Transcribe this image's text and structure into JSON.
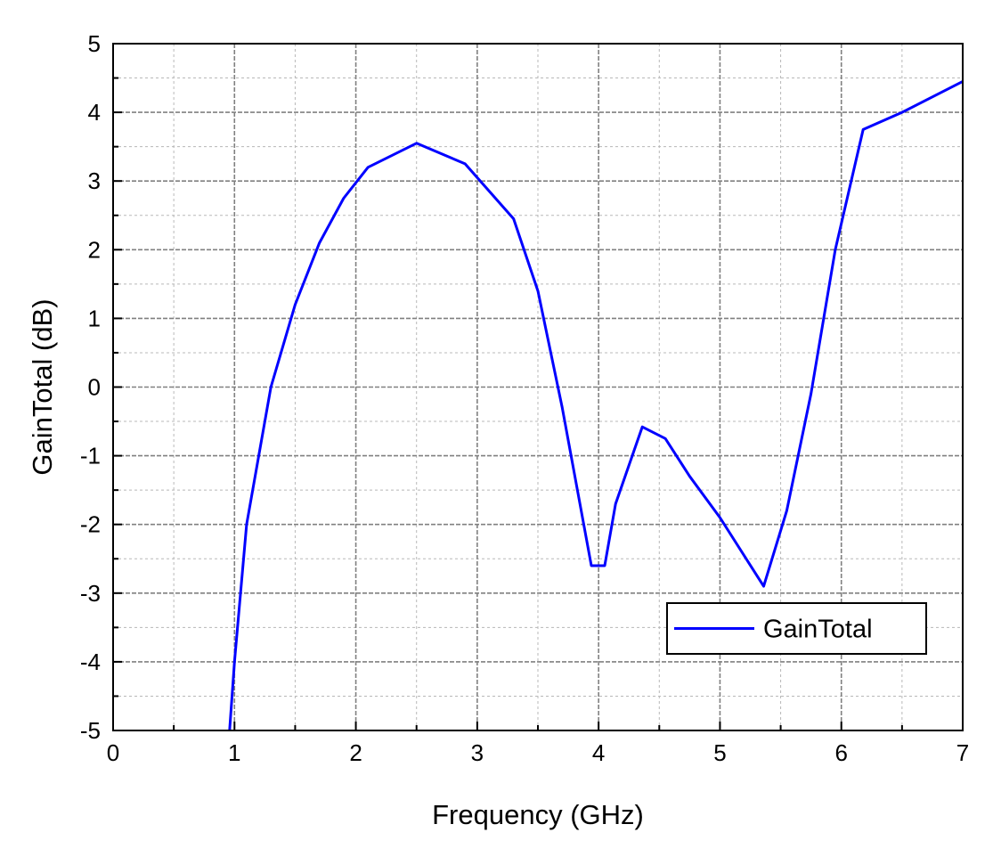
{
  "chart_data": {
    "type": "line",
    "title": "",
    "xlabel": "Frequency (GHz)",
    "ylabel": "GainTotal (dB)",
    "xlim": [
      0,
      7
    ],
    "ylim": [
      -5,
      5
    ],
    "x_ticks": [
      "0",
      "1",
      "2",
      "3",
      "4",
      "5",
      "6",
      "7"
    ],
    "y_ticks": [
      "5",
      "4",
      "3",
      "2",
      "1",
      "0",
      "-1",
      "-2",
      "-3",
      "-4",
      "-5"
    ],
    "grid": true,
    "legend_position": "bottom-right",
    "series": [
      {
        "name": "GainTotal",
        "color": "#0000ff",
        "x": [
          0.96,
          1.0,
          1.1,
          1.3,
          1.5,
          1.7,
          1.9,
          2.1,
          2.5,
          2.9,
          3.3,
          3.5,
          3.7,
          3.94,
          4.05,
          4.14,
          4.36,
          4.55,
          4.75,
          5.0,
          5.36,
          5.55,
          5.75,
          5.95,
          6.18,
          6.5,
          7.0
        ],
        "y": [
          -5.0,
          -4.0,
          -2.0,
          0.0,
          1.2,
          2.1,
          2.75,
          3.2,
          3.55,
          3.25,
          2.45,
          1.4,
          -0.3,
          -2.6,
          -2.6,
          -1.7,
          -0.58,
          -0.75,
          -1.3,
          -1.9,
          -2.9,
          -1.8,
          -0.1,
          2.0,
          3.75,
          4.0,
          4.45
        ]
      }
    ]
  }
}
